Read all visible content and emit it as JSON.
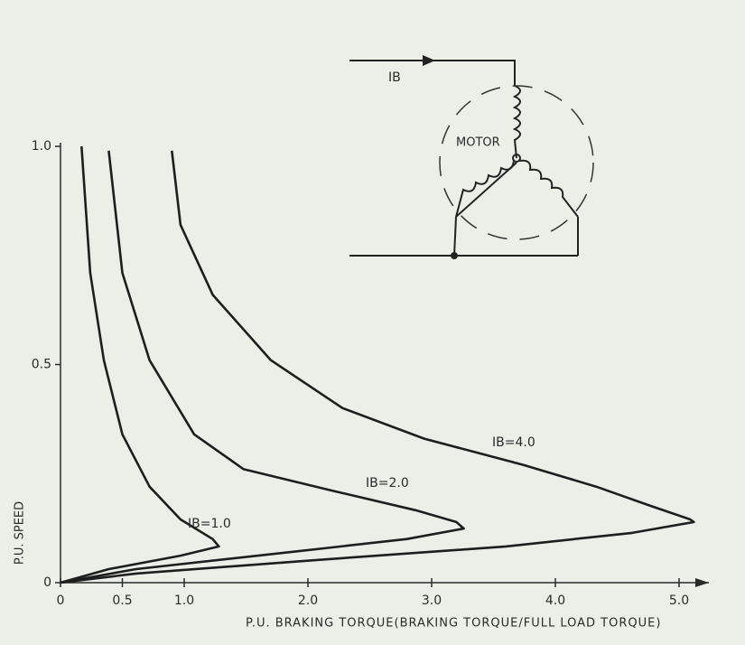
{
  "chart_data": {
    "type": "line",
    "xlabel": "P.U. BRAKING TORQUE(BRAKING TORQUE/FULL LOAD TORQUE)",
    "ylabel": "P.U. SPEED",
    "xlim": [
      0,
      5.3
    ],
    "ylim": [
      0,
      1.0
    ],
    "xticks": [
      0,
      0.5,
      {
        "value": 1,
        "label": "1.0"
      },
      {
        "value": 2,
        "label": "2.0"
      },
      {
        "value": 3,
        "label": "3.0"
      },
      {
        "value": 4,
        "label": "4.0"
      },
      {
        "value": 5,
        "label": "5.0"
      }
    ],
    "yticks": [
      0,
      0.5,
      {
        "value": 1,
        "label": "1.0"
      }
    ],
    "grid": false,
    "series": [
      {
        "name": "IB=1.0",
        "color": "#1e1e1e",
        "x": [
          0.17,
          0.24,
          0.35,
          0.5,
          0.72,
          0.97,
          1.23,
          1.28,
          0.97,
          0.39,
          0
        ],
        "values": [
          1.0,
          0.71,
          0.51,
          0.34,
          0.22,
          0.145,
          0.1,
          0.083,
          0.062,
          0.031,
          0
        ]
      },
      {
        "name": "IB=2.0",
        "color": "#1e1e1e",
        "x": [
          0.39,
          0.5,
          0.72,
          1.08,
          1.48,
          2.21,
          2.87,
          3.2,
          3.26,
          2.8,
          1.92,
          0.61,
          0
        ],
        "values": [
          0.99,
          0.71,
          0.51,
          0.34,
          0.26,
          0.21,
          0.166,
          0.139,
          0.124,
          0.1,
          0.072,
          0.031,
          0
        ]
      },
      {
        "name": "IB=4.0",
        "color": "#1e1e1e",
        "x": [
          0.9,
          0.97,
          1.23,
          1.7,
          2.28,
          2.94,
          3.74,
          4.33,
          4.77,
          5.09,
          5.12,
          4.62,
          3.6,
          2.07,
          0.61,
          0
        ],
        "values": [
          0.99,
          0.82,
          0.66,
          0.51,
          0.4,
          0.33,
          0.27,
          0.22,
          0.176,
          0.145,
          0.139,
          0.114,
          0.083,
          0.052,
          0.021,
          0
        ]
      }
    ],
    "diagram_labels": [
      "IB",
      "MOTOR"
    ]
  }
}
